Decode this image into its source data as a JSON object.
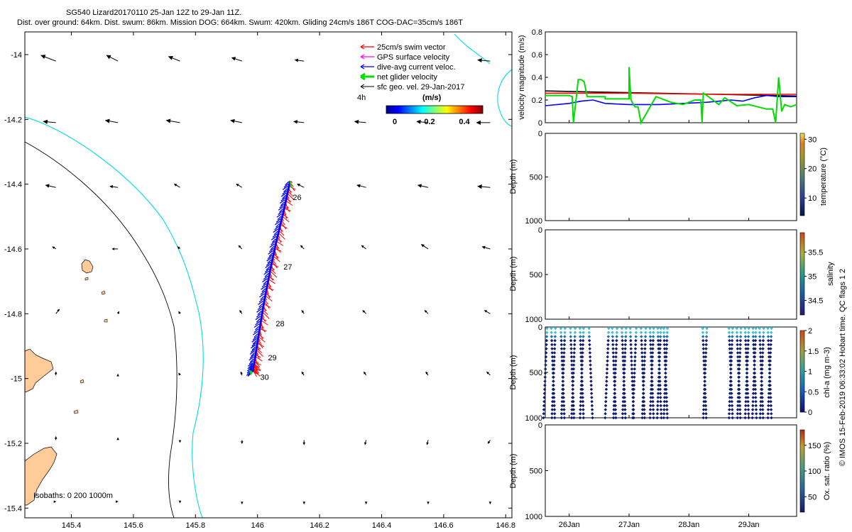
{
  "header": {
    "title": "SG540 Lizard20170110 25-Jan 12Z to 29-Jan 11Z.",
    "subtitle": "Dist. over ground: 64km. Dist. swum: 86km. Mission DOG: 664km. Swum: 420km. Gliding 24cm/s 186T COG-DAC=35cm/s 186T"
  },
  "footer": {
    "credit": "© IMOS 15-Feb-2019 06:33:02 Hobart time. QC flags 1  2"
  },
  "colors": {
    "swim": "#ff0000",
    "gps": "#ff00ff",
    "dac": "#0000ff",
    "net": "#00dd00",
    "sfc": "#000000",
    "isobath200": "#00dddd",
    "land": "#ffcc99",
    "depthdot": "#101a6e"
  },
  "chart_data": [
    {
      "type": "map",
      "id": "track-map",
      "xlim": [
        145.25,
        146.82
      ],
      "ylim": [
        -15.43,
        -13.93
      ],
      "x_ticks": [
        145.4,
        145.6,
        145.8,
        146,
        146.2,
        146.4,
        146.6,
        146.8
      ],
      "x_tick_labels": [
        "145.4",
        "145.6",
        "145.8",
        "146",
        "146.2",
        "146.4",
        "146.6",
        "146.8"
      ],
      "y_ticks": [
        -14,
        -14.2,
        -14.4,
        -14.6,
        -14.8,
        -15,
        -15.2,
        -15.4
      ],
      "y_tick_labels": [
        "-14",
        "-14.2",
        "-14.4",
        "-14.6",
        "-14.8",
        "-15",
        "-15.2",
        "-15.4"
      ],
      "legend": [
        {
          "label": "25cm/s swim vector",
          "color": "#ff0000"
        },
        {
          "label": "GPS surface velocity",
          "color": "#ff00ff"
        },
        {
          "label": "dive-avg current veloc.",
          "color": "#0000ff"
        },
        {
          "label": "net glider velocity",
          "color": "#00dd00"
        },
        {
          "label": "sfc geo. vel. 29-Jan-2017",
          "color": "#000000"
        }
      ],
      "colorbar": {
        "label": "(m/s)",
        "tag": "4h",
        "ticks": [
          "0",
          "0.2",
          "0.4"
        ]
      },
      "isobath_label": "Isobaths: 0   200  1000m",
      "track": [
        {
          "lon": 146.105,
          "lat": -14.39
        },
        {
          "lon": 146.085,
          "lat": -14.48
        },
        {
          "lon": 146.06,
          "lat": -14.58
        },
        {
          "lon": 146.04,
          "lat": -14.67
        },
        {
          "lon": 146.02,
          "lat": -14.77
        },
        {
          "lon": 146.003,
          "lat": -14.87
        },
        {
          "lon": 145.99,
          "lat": -14.95
        },
        {
          "lon": 145.985,
          "lat": -14.98
        }
      ],
      "day_labels": [
        {
          "text": "26",
          "lon": 146.1,
          "lat": -14.44
        },
        {
          "text": "27",
          "lon": 146.07,
          "lat": -14.655
        },
        {
          "text": "28",
          "lon": 146.045,
          "lat": -14.83
        },
        {
          "text": "29",
          "lon": 146.02,
          "lat": -14.935
        },
        {
          "text": "30",
          "lon": 145.995,
          "lat": -14.995
        }
      ],
      "sfc_vectors": {
        "lons": [
          145.35,
          145.55,
          145.75,
          145.95,
          146.15,
          146.35,
          146.55,
          146.75
        ],
        "lats": [
          -14.02,
          -14.21,
          -14.41,
          -14.6,
          -14.8,
          -14.99,
          -15.19,
          -15.38
        ],
        "u": [
          [
            -0.13,
            -0.1,
            -0.1,
            -0.09,
            -0.08,
            null,
            null,
            -0.11
          ],
          [
            -0.11,
            -0.11,
            -0.12,
            -0.1,
            -0.09,
            -0.1,
            -0.1,
            -0.12
          ],
          [
            -0.09,
            -0.07,
            -0.05,
            -0.05,
            -0.06,
            -0.08,
            -0.09,
            -0.11
          ],
          [
            -0.03,
            -0.05,
            -0.02,
            -0.03,
            -0.03,
            -0.04,
            -0.06,
            -0.07
          ],
          [
            0.03,
            0.01,
            -0.01,
            -0.02,
            -0.02,
            -0.03,
            -0.03,
            -0.05
          ],
          [
            0.0,
            0.0,
            -0.01,
            -0.01,
            -0.02,
            -0.02,
            -0.02,
            -0.03
          ],
          [
            0.0,
            0.0,
            0.0,
            0.0,
            0.0,
            -0.01,
            -0.01,
            -0.02
          ],
          [
            0.0,
            0.0,
            0.0,
            0.0,
            0.0,
            0.0,
            0.0,
            0.0
          ]
        ],
        "v": [
          [
            0.05,
            0.05,
            0.04,
            0.03,
            0.01,
            null,
            null,
            0.01
          ],
          [
            0.01,
            0.02,
            0.02,
            0.02,
            0.01,
            0.01,
            0.01,
            0.0
          ],
          [
            0.02,
            0.01,
            0.03,
            0.03,
            0.03,
            0.02,
            0.02,
            0.01
          ],
          [
            0.02,
            0.0,
            0.02,
            0.03,
            0.03,
            0.03,
            0.04,
            0.02
          ],
          [
            0.04,
            0.02,
            0.02,
            0.03,
            0.03,
            0.03,
            0.03,
            0.03
          ],
          [
            0.03,
            0.01,
            0.02,
            0.03,
            0.03,
            0.03,
            0.03,
            0.03
          ],
          [
            0.03,
            0.02,
            -0.02,
            -0.03,
            -0.04,
            -0.04,
            -0.04,
            -0.03
          ],
          [
            0.0,
            0.0,
            -0.01,
            -0.02,
            -0.02,
            -0.02,
            -0.02,
            -0.02
          ]
        ]
      }
    },
    {
      "type": "line",
      "id": "velocity-panel",
      "ylabel": "velocity magnitude (m/s)",
      "ylim": [
        0,
        0.8
      ],
      "y_ticks": [
        0,
        0.2,
        0.4,
        0.6,
        0.8
      ],
      "y_tick_labels": [
        "0",
        "0.2",
        "0.4",
        "0.6",
        "0.8"
      ],
      "x_range_days": [
        25.6,
        29.8
      ],
      "series": [
        {
          "name": "sfc geo. vel.",
          "color": "#000000",
          "x": [
            25.6,
            26.5,
            27.5,
            28.5,
            29.8
          ],
          "y": [
            0.28,
            0.27,
            0.26,
            0.25,
            0.235
          ]
        },
        {
          "name": "25cm/s swim vector",
          "color": "#ff0000",
          "x": [
            25.6,
            27.0,
            28.5,
            29.8
          ],
          "y": [
            0.26,
            0.26,
            0.25,
            0.25
          ]
        },
        {
          "name": "dive-avg current veloc.",
          "color": "#0000ff",
          "x": [
            25.6,
            26.0,
            26.2,
            26.4,
            26.6,
            27.0,
            27.5,
            27.9,
            28.3,
            28.7,
            28.9,
            29.1,
            29.3,
            29.5,
            29.8
          ],
          "y": [
            0.15,
            0.17,
            0.19,
            0.2,
            0.17,
            0.16,
            0.16,
            0.17,
            0.18,
            0.2,
            0.19,
            0.22,
            0.24,
            0.23,
            0.23
          ]
        },
        {
          "name": "net glider velocity",
          "color": "#00dd00",
          "x": [
            25.6,
            26.0,
            26.05,
            26.07,
            26.12,
            26.15,
            26.2,
            26.25,
            26.3,
            26.6,
            26.6,
            26.8,
            27.0,
            27.0,
            27.03,
            27.05,
            27.1,
            27.15,
            27.2,
            27.45,
            27.7,
            27.9,
            28.1,
            28.2,
            28.22,
            28.24,
            28.3,
            28.5,
            28.6,
            28.8,
            29.0,
            29.3,
            29.4,
            29.45,
            29.5,
            29.55,
            29.6,
            29.7,
            29.8
          ],
          "y": [
            0.24,
            0.24,
            0.23,
            0.0,
            0.23,
            0.38,
            0.38,
            0.36,
            0.23,
            0.23,
            0.21,
            0.21,
            0.21,
            0.49,
            0.21,
            0.18,
            0.14,
            0.14,
            0.0,
            0.23,
            0.18,
            0.16,
            0.2,
            0.2,
            0.0,
            0.26,
            0.24,
            0.16,
            0.22,
            0.15,
            0.16,
            0.12,
            0.12,
            0.0,
            0.4,
            0.1,
            0.16,
            0.14,
            0.16
          ]
        }
      ]
    },
    {
      "type": "scatter",
      "id": "temperature-panel",
      "ylabel": "Depth (m)",
      "ylim": [
        1000,
        0
      ],
      "y_ticks": [
        0,
        500,
        1000
      ],
      "y_tick_labels": [
        "0",
        "500",
        "1000"
      ],
      "colorbar": {
        "label": "temperature (°C)",
        "range": [
          4,
          32
        ],
        "ticks": [
          "10",
          "20",
          "30"
        ],
        "tick_values": [
          10,
          20,
          30
        ]
      },
      "points": []
    },
    {
      "type": "scatter",
      "id": "salinity-panel",
      "ylabel": "Depth (m)",
      "ylim": [
        1000,
        0
      ],
      "y_ticks": [
        0,
        500,
        1000
      ],
      "y_tick_labels": [
        "0",
        "500",
        "1000"
      ],
      "colorbar": {
        "label": "salinity",
        "range": [
          34.2,
          35.9
        ],
        "ticks": [
          "34.5",
          "35",
          "35.5"
        ],
        "tick_values": [
          34.5,
          35,
          35.5
        ]
      },
      "points": []
    },
    {
      "type": "scatter",
      "id": "chla-panel",
      "ylabel": "Depth (m)",
      "ylim": [
        1000,
        0
      ],
      "y_ticks": [
        0,
        500,
        1000
      ],
      "y_tick_labels": [
        "0",
        "500",
        "1000"
      ],
      "colorbar": {
        "label": "chl-a (mg m-3)",
        "range": [
          0,
          2
        ],
        "ticks": [
          "0",
          "0.5",
          "1",
          "1.5",
          "2"
        ],
        "tick_values": [
          0,
          0.5,
          1,
          1.5,
          2
        ]
      },
      "profile_days": [
        25.63,
        25.7,
        25.77,
        25.86,
        25.93,
        26.02,
        26.1,
        26.18,
        26.24,
        26.33,
        26.66,
        26.72,
        26.8,
        26.88,
        26.95,
        27.02,
        27.12,
        27.2,
        27.28,
        27.35,
        27.41,
        27.48,
        27.53,
        27.58,
        27.64,
        28.23,
        28.3,
        28.67,
        28.73,
        28.8,
        28.87,
        28.94,
        29.0,
        29.07,
        29.12,
        29.18,
        29.25,
        29.32,
        29.38
      ]
    },
    {
      "type": "scatter",
      "id": "oxygen-panel",
      "ylabel": "Depth (m)",
      "ylim": [
        1000,
        0
      ],
      "y_ticks": [
        0,
        500,
        1000
      ],
      "y_tick_labels": [
        "0",
        "500",
        "1000"
      ],
      "x_ticks": [
        26,
        27,
        28,
        29
      ],
      "x_tick_labels": [
        "26Jan",
        "27Jan",
        "28Jan",
        "29Jan"
      ],
      "colorbar": {
        "label": "Ox. sat. ratio (%)",
        "range": [
          20,
          180
        ],
        "ticks": [
          "50",
          "100",
          "150"
        ],
        "tick_values": [
          50,
          100,
          150
        ]
      },
      "points": []
    }
  ]
}
